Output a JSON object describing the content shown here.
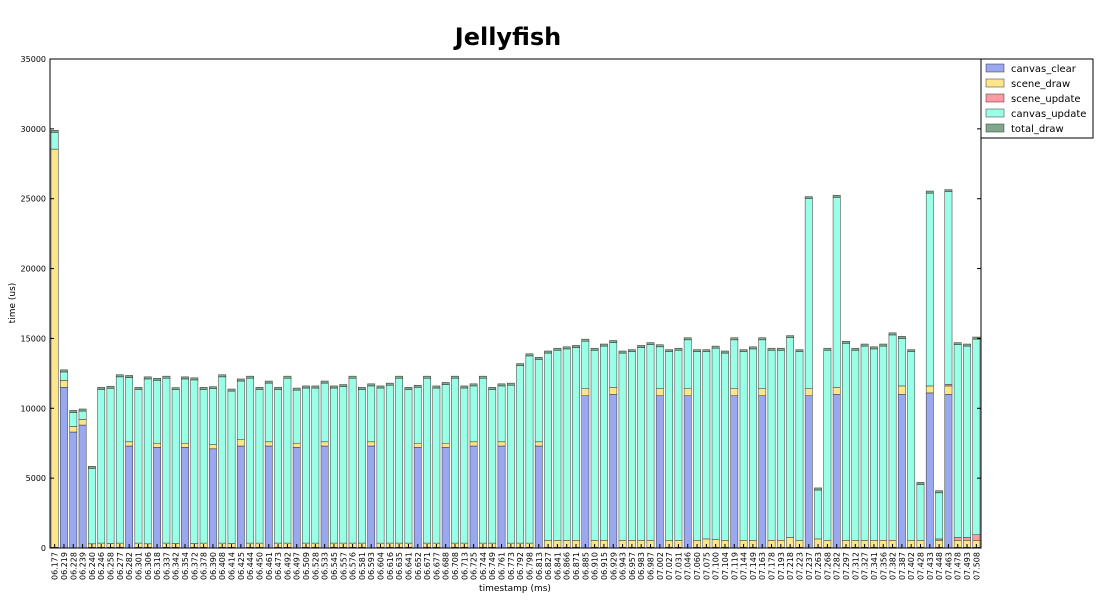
{
  "chart_data": {
    "type": "bar",
    "stacked": true,
    "title": "Jellyfish",
    "xlabel": "timestamp (ms)",
    "ylabel": "time (us)",
    "ylim": [
      0,
      35000
    ],
    "yticks": [
      0,
      5000,
      10000,
      15000,
      20000,
      25000,
      30000,
      35000
    ],
    "grid": false,
    "legend_position": "outside-top-right",
    "categories": [
      "06.177",
      "06.219",
      "06.228",
      "06.239",
      "06.240",
      "06.246",
      "06.258",
      "06.277",
      "06.282",
      "06.301",
      "06.306",
      "06.318",
      "06.337",
      "06.342",
      "06.354",
      "06.372",
      "06.378",
      "06.390",
      "06.408",
      "06.414",
      "06.425",
      "06.444",
      "06.450",
      "06.461",
      "06.473",
      "06.492",
      "06.497",
      "06.509",
      "06.528",
      "06.533",
      "06.545",
      "06.557",
      "06.576",
      "06.581",
      "06.593",
      "06.604",
      "06.616",
      "06.635",
      "06.641",
      "06.652",
      "06.671",
      "06.677",
      "06.688",
      "06.708",
      "06.713",
      "06.725",
      "06.744",
      "06.749",
      "06.761",
      "06.773",
      "06.792",
      "06.798",
      "06.813",
      "06.827",
      "06.841",
      "06.866",
      "06.871",
      "06.885",
      "06.910",
      "06.915",
      "06.929",
      "06.943",
      "06.957",
      "06.983",
      "06.987",
      "07.002",
      "07.027",
      "07.031",
      "07.046",
      "07.060",
      "07.075",
      "07.100",
      "07.104",
      "07.119",
      "07.144",
      "07.149",
      "07.163",
      "07.178",
      "07.193",
      "07.218",
      "07.223",
      "07.237",
      "07.263",
      "07.268",
      "07.282",
      "07.297",
      "07.312",
      "07.327",
      "07.341",
      "07.356",
      "07.382",
      "07.387",
      "07.402",
      "07.428",
      "07.433",
      "07.448",
      "07.463",
      "07.478",
      "07.493",
      "07.508"
    ],
    "series": [
      {
        "name": "canvas_clear",
        "color": "#9aa8f0",
        "values": [
          50,
          11500,
          8300,
          8800,
          50,
          50,
          50,
          50,
          7300,
          50,
          50,
          7200,
          50,
          50,
          7200,
          50,
          50,
          7100,
          50,
          50,
          7300,
          50,
          50,
          7300,
          50,
          50,
          7200,
          50,
          50,
          7300,
          50,
          50,
          50,
          50,
          7300,
          50,
          50,
          50,
          50,
          7200,
          50,
          50,
          7200,
          50,
          50,
          7300,
          50,
          50,
          7300,
          50,
          50,
          50,
          7300,
          50,
          50,
          50,
          50,
          10900,
          50,
          50,
          11000,
          50,
          50,
          50,
          50,
          10900,
          50,
          50,
          10900,
          50,
          50,
          50,
          50,
          10900,
          50,
          50,
          10900,
          50,
          50,
          50,
          50,
          10900,
          50,
          50,
          11000,
          50,
          50,
          50,
          50,
          50,
          50,
          11000,
          50,
          50,
          11100,
          50,
          11000,
          50,
          50,
          50
        ]
      },
      {
        "name": "scene_draw",
        "color": "#fde68a",
        "values": [
          28500,
          500,
          400,
          400,
          250,
          300,
          280,
          300,
          300,
          300,
          250,
          300,
          300,
          280,
          300,
          280,
          300,
          300,
          300,
          280,
          450,
          300,
          300,
          300,
          300,
          300,
          300,
          300,
          300,
          300,
          300,
          300,
          300,
          300,
          300,
          300,
          300,
          300,
          300,
          300,
          300,
          300,
          300,
          300,
          300,
          300,
          300,
          300,
          300,
          300,
          300,
          300,
          300,
          500,
          500,
          500,
          500,
          500,
          500,
          500,
          500,
          500,
          500,
          500,
          500,
          500,
          500,
          500,
          500,
          500,
          600,
          550,
          500,
          500,
          500,
          500,
          500,
          500,
          500,
          700,
          500,
          500,
          600,
          500,
          500,
          500,
          500,
          500,
          500,
          500,
          500,
          600,
          500,
          500,
          500,
          500,
          600,
          500,
          500,
          500
        ]
      },
      {
        "name": "scene_update",
        "color": "#ff9aa2",
        "values": [
          0,
          0,
          0,
          0,
          0,
          0,
          0,
          0,
          0,
          0,
          0,
          0,
          0,
          0,
          0,
          0,
          0,
          0,
          0,
          0,
          0,
          0,
          0,
          0,
          0,
          0,
          0,
          0,
          0,
          0,
          0,
          0,
          0,
          0,
          0,
          0,
          0,
          0,
          0,
          0,
          0,
          0,
          0,
          0,
          0,
          0,
          0,
          0,
          0,
          0,
          0,
          0,
          0,
          0,
          0,
          0,
          0,
          0,
          0,
          0,
          0,
          0,
          0,
          0,
          0,
          0,
          0,
          0,
          0,
          0,
          0,
          0,
          0,
          0,
          0,
          0,
          0,
          0,
          0,
          0,
          0,
          0,
          0,
          0,
          0,
          0,
          0,
          0,
          0,
          0,
          0,
          0,
          0,
          0,
          0,
          100,
          100,
          200,
          200,
          400
        ]
      },
      {
        "name": "canvas_update",
        "color": "#99ffe6",
        "values": [
          1200,
          600,
          1000,
          600,
          5400,
          11000,
          11100,
          11900,
          4600,
          11000,
          11800,
          4500,
          11800,
          11000,
          4600,
          11700,
          11000,
          4000,
          11900,
          10900,
          4200,
          11800,
          11000,
          4200,
          11000,
          11800,
          3800,
          11100,
          11100,
          4200,
          11100,
          11200,
          11800,
          11000,
          4000,
          11100,
          11300,
          11800,
          11000,
          4000,
          11800,
          11100,
          4200,
          11800,
          11100,
          4000,
          11800,
          11000,
          4000,
          11300,
          12700,
          13400,
          5900,
          13400,
          13600,
          13700,
          13800,
          3400,
          13600,
          13900,
          3200,
          13400,
          13500,
          13800,
          14000,
          3000,
          13500,
          13600,
          3500,
          13500,
          13400,
          13700,
          13400,
          3500,
          13500,
          13700,
          3500,
          13600,
          13600,
          14300,
          13500,
          13600,
          3500,
          13600,
          13600,
          14100,
          13600,
          13900,
          13700,
          13900,
          14700,
          3400,
          13500,
          4000,
          13800,
          3300,
          13800,
          13800,
          13700,
          14000
        ]
      },
      {
        "name": "total_draw",
        "color": "#7fa88c",
        "values": [
          150,
          150,
          150,
          150,
          150,
          150,
          150,
          150,
          150,
          150,
          150,
          150,
          150,
          150,
          150,
          150,
          150,
          150,
          150,
          150,
          150,
          150,
          150,
          150,
          150,
          150,
          150,
          150,
          150,
          150,
          150,
          150,
          150,
          150,
          150,
          150,
          150,
          150,
          150,
          150,
          150,
          150,
          150,
          150,
          150,
          150,
          150,
          150,
          150,
          150,
          150,
          150,
          150,
          150,
          150,
          150,
          150,
          150,
          150,
          150,
          150,
          150,
          150,
          150,
          150,
          150,
          150,
          150,
          150,
          150,
          150,
          150,
          150,
          150,
          150,
          150,
          150,
          150,
          150,
          150,
          150,
          150,
          150,
          150,
          150,
          150,
          150,
          150,
          150,
          150,
          150,
          150,
          150,
          150,
          150,
          150,
          150,
          150,
          150,
          150
        ]
      }
    ]
  }
}
